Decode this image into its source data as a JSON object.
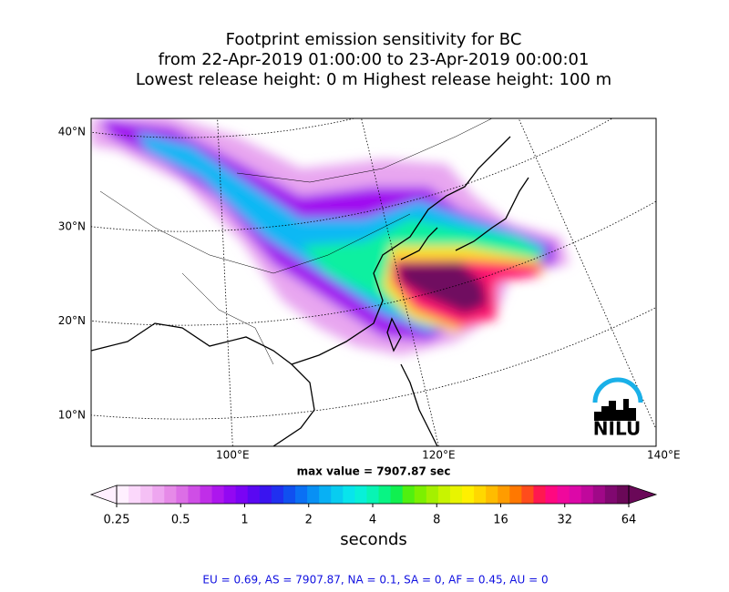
{
  "map": {
    "title_lines": [
      "Footprint emission sensitivity for BC",
      "from 22-Apr-2019 01:00:00 to 23-Apr-2019 00:00:01",
      "Lowest release height: 0 m      Highest release height: 100 m"
    ],
    "lat_ticks": [
      {
        "value": 40,
        "label": "40°N"
      },
      {
        "value": 30,
        "label": "30°N"
      },
      {
        "value": 20,
        "label": "20°N"
      },
      {
        "value": 10,
        "label": "10°N"
      }
    ],
    "lon_ticks": [
      {
        "value": 100,
        "label": "100°E"
      },
      {
        "value": 120,
        "label": "120°E"
      },
      {
        "value": 140,
        "label": "140°E"
      }
    ],
    "max_value_text": "max value = 7907.87 sec",
    "logo": "NILU"
  },
  "colorbar": {
    "type": "colorbar",
    "log": true,
    "lim": [
      0.25,
      64
    ],
    "ticks": [
      0.25,
      0.5,
      1,
      2,
      4,
      8,
      16,
      32,
      64
    ],
    "label": "seconds",
    "colors": [
      "#fff0ff",
      "#fbd8fb",
      "#f5c0f5",
      "#eea6f0",
      "#e68ae8",
      "#dc6ee6",
      "#cf4ee6",
      "#c02ee8",
      "#ad16ee",
      "#9308f2",
      "#7a04f4",
      "#5a08f2",
      "#3a14f0",
      "#2030f0",
      "#1050f0",
      "#0a70f4",
      "#0890f4",
      "#08b0f4",
      "#08ccf0",
      "#08e4ec",
      "#08f0d8",
      "#08f4b4",
      "#08f484",
      "#10f050",
      "#50f010",
      "#7cf000",
      "#a4f000",
      "#c8f400",
      "#e8f400",
      "#fff000",
      "#ffd800",
      "#ffbc00",
      "#ff9c00",
      "#ff7800",
      "#ff4c1c",
      "#ff1850",
      "#ff0880",
      "#f0089c",
      "#dc08a8",
      "#c0089c",
      "#a00888",
      "#800870",
      "#6a0858"
    ]
  },
  "footer": "EU = 0.69,  AS = 7907.87,  NA = 0.1,  SA = 0,  AF = 0.45,  AU = 0"
}
